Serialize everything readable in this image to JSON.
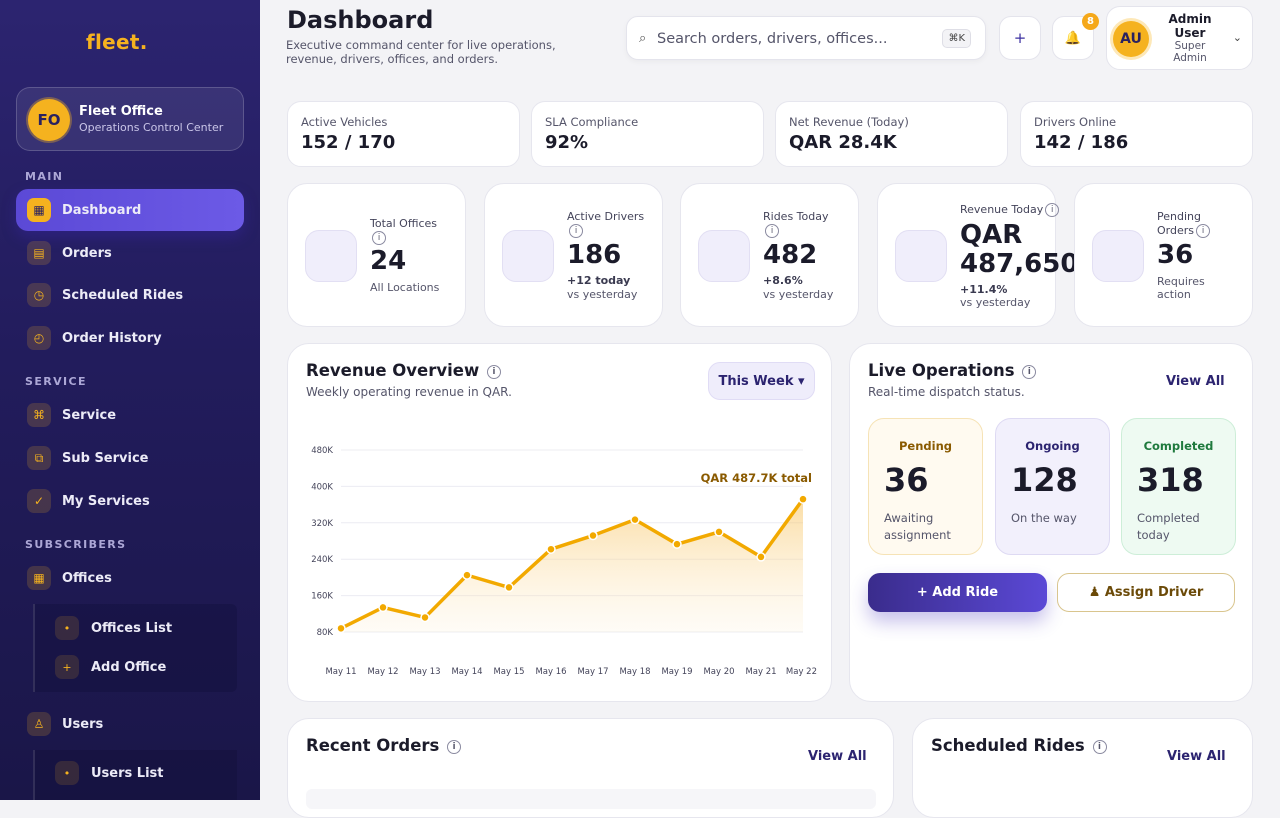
{
  "brand": {
    "logo": "fleet."
  },
  "office": {
    "initials": "FO",
    "name": "Fleet Office",
    "subtitle": "Operations Control Center"
  },
  "sidebar": {
    "sections": [
      "MAIN",
      "SERVICE",
      "SUBSCRIBERS"
    ],
    "items": [
      {
        "label": "Dashboard",
        "icon": "grid-icon",
        "glyph": "▦"
      },
      {
        "label": "Orders",
        "icon": "orders-icon",
        "glyph": "▤"
      },
      {
        "label": "Scheduled Rides",
        "icon": "calendar-clock-icon",
        "glyph": "◷"
      },
      {
        "label": "Order History",
        "icon": "history-icon",
        "glyph": "◴"
      },
      {
        "label": "Service",
        "icon": "command-icon",
        "glyph": "⌘"
      },
      {
        "label": "Sub Service",
        "icon": "layers-icon",
        "glyph": "⧉"
      },
      {
        "label": "My Services",
        "icon": "check-icon",
        "glyph": "✓"
      },
      {
        "label": "Offices",
        "icon": "building-icon",
        "glyph": "▦"
      },
      {
        "label": "Users",
        "icon": "user-icon",
        "glyph": "♙"
      }
    ],
    "offices_sub": [
      {
        "label": "Offices List",
        "glyph": "•"
      },
      {
        "label": "Add Office",
        "glyph": "+"
      }
    ],
    "users_sub": [
      {
        "label": "Users List",
        "glyph": "•"
      }
    ]
  },
  "header": {
    "title": "Dashboard",
    "subtitle": "Executive command center for live operations, revenue, drivers, offices, and orders.",
    "search_placeholder": "Search orders, drivers, offices...",
    "shortcut": "⌘K",
    "add_glyph": "+",
    "bell_glyph": "🔔",
    "notifications": "8",
    "user": {
      "initials": "AU",
      "name": "Admin User",
      "role": "Super Admin",
      "chevron": "⌄"
    }
  },
  "kpis": [
    {
      "label": "Active Vehicles",
      "value": "152 / 170"
    },
    {
      "label": "SLA Compliance",
      "value": "92%"
    },
    {
      "label": "Net Revenue (Today)",
      "value": "QAR 28.4K"
    },
    {
      "label": "Drivers Online",
      "value": "142 / 186"
    }
  ],
  "stats": [
    {
      "label": "Total Offices",
      "value": "24",
      "delta": "",
      "foot": "All Locations"
    },
    {
      "label": "Active Drivers",
      "value": "186",
      "delta": "+12 today",
      "foot": "vs yesterday"
    },
    {
      "label": "Rides Today",
      "value": "482",
      "delta": "+8.6%",
      "foot": "vs yesterday"
    },
    {
      "label": "Revenue Today",
      "value": "QAR 487,650",
      "delta": "+11.4%",
      "foot": "vs yesterday"
    },
    {
      "label": "Pending Orders",
      "value": "36",
      "delta": "",
      "foot": "Requires action"
    }
  ],
  "info_glyph": "i",
  "revenue": {
    "title": "Revenue Overview",
    "subtitle": "Weekly operating revenue in QAR.",
    "range_button": "This Week ▾"
  },
  "chart_data": {
    "type": "area",
    "categories": [
      "May 11",
      "May 12",
      "May 13",
      "May 14",
      "May 15",
      "May 16",
      "May 17",
      "May 18",
      "May 19",
      "May 20",
      "May 21",
      "May 22"
    ],
    "values": [
      88000,
      134000,
      112000,
      205000,
      178000,
      262000,
      292000,
      327000,
      273000,
      300000,
      245000,
      372000
    ],
    "yticks": [
      "80K",
      "160K",
      "240K",
      "320K",
      "400K",
      "480K"
    ],
    "ylim": [
      80000,
      480000
    ],
    "annotation": "QAR 487.7K total",
    "grid": true,
    "color": "#f2a900"
  },
  "live_ops": {
    "title": "Live Operations",
    "subtitle": "Real-time dispatch status.",
    "view_all": "View All",
    "cards": [
      {
        "label": "Pending",
        "value": "36",
        "note": "Awaiting assignment",
        "color": "#8a5a00"
      },
      {
        "label": "Ongoing",
        "value": "128",
        "note": "On the way",
        "color": "#2c2470"
      },
      {
        "label": "Completed",
        "value": "318",
        "note": "Completed today",
        "color": "#1f7a3e"
      }
    ],
    "add_ride": "+ Add Ride",
    "assign_driver": "♟ Assign Driver"
  },
  "recent_orders": {
    "title": "Recent Orders",
    "view_all": "View All"
  },
  "scheduled_rides": {
    "title": "Scheduled Rides",
    "view_all": "View All"
  }
}
